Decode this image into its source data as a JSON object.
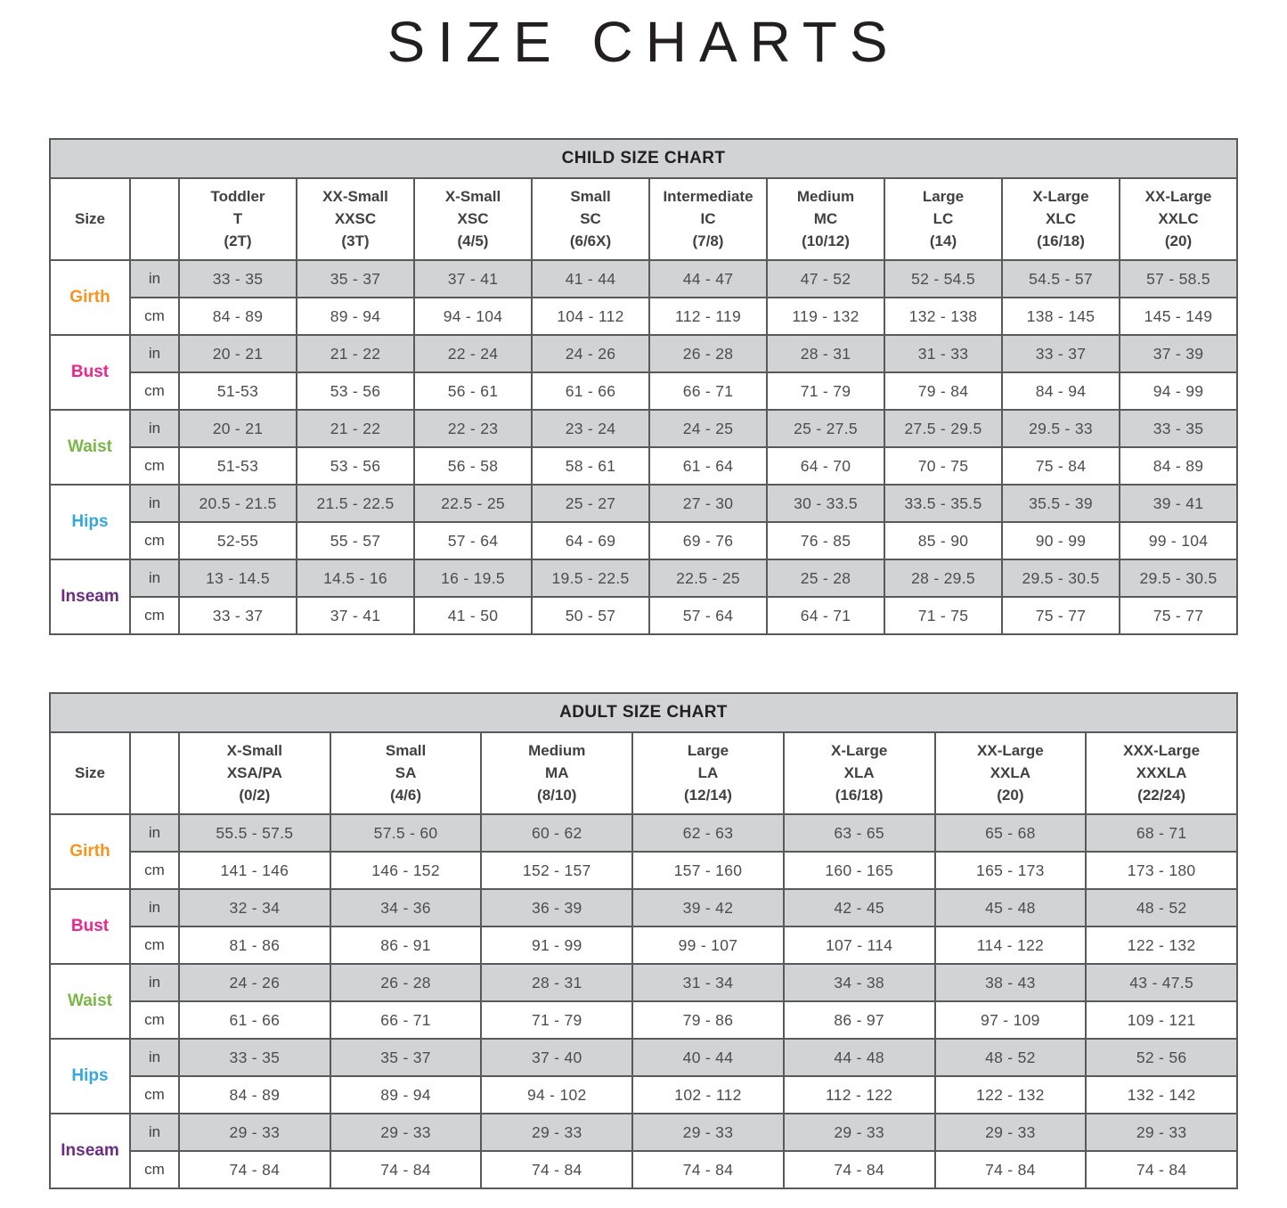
{
  "page": {
    "title": "SIZE CHARTS"
  },
  "colors": {
    "band_background": "#D1D3D4",
    "row_in_background": "#D1D3D4",
    "row_cm_background": "#FFFFFF",
    "border": "#58595B",
    "title_text": "#231F20",
    "value_text": "#4D4D4F",
    "girth_accent": "#F7941E",
    "bust_accent": "#EC268F",
    "waist_accent": "#7AB648",
    "hips_accent": "#35A8E0",
    "inseam_accent": "#6B2D82"
  },
  "charts": [
    {
      "id": "child",
      "title": "CHILD SIZE CHART",
      "corner_label": "Size",
      "unit_labels": [
        "in",
        "cm"
      ],
      "columns": [
        {
          "name": "Toddler",
          "code": "T",
          "range": "(2T)"
        },
        {
          "name": "XX-Small",
          "code": "XXSC",
          "range": "(3T)"
        },
        {
          "name": "X-Small",
          "code": "XSC",
          "range": "(4/5)"
        },
        {
          "name": "Small",
          "code": "SC",
          "range": "(6/6X)"
        },
        {
          "name": "Intermediate",
          "code": "IC",
          "range": "(7/8)"
        },
        {
          "name": "Medium",
          "code": "MC",
          "range": "(10/12)"
        },
        {
          "name": "Large",
          "code": "LC",
          "range": "(14)"
        },
        {
          "name": "X-Large",
          "code": "XLC",
          "range": "(16/18)"
        },
        {
          "name": "XX-Large",
          "code": "XXLC",
          "range": "(20)"
        }
      ],
      "measurements": [
        {
          "label": "Girth",
          "color": "#F7941E",
          "values_in": [
            "33 - 35",
            "35 - 37",
            "37 - 41",
            "41 - 44",
            "44 - 47",
            "47 - 52",
            "52 - 54.5",
            "54.5 - 57",
            "57 - 58.5"
          ],
          "values_cm": [
            "84 - 89",
            "89 - 94",
            "94 - 104",
            "104 - 112",
            "112 - 119",
            "119 - 132",
            "132 - 138",
            "138 - 145",
            "145 - 149"
          ]
        },
        {
          "label": "Bust",
          "color": "#EC268F",
          "values_in": [
            "20 - 21",
            "21 - 22",
            "22 - 24",
            "24 - 26",
            "26 - 28",
            "28 - 31",
            "31 - 33",
            "33 - 37",
            "37 - 39"
          ],
          "values_cm": [
            "51-53",
            "53 - 56",
            "56 - 61",
            "61 - 66",
            "66 - 71",
            "71 - 79",
            "79 - 84",
            "84 - 94",
            "94 - 99"
          ]
        },
        {
          "label": "Waist",
          "color": "#7AB648",
          "values_in": [
            "20 - 21",
            "21 - 22",
            "22 - 23",
            "23 - 24",
            "24 - 25",
            "25 - 27.5",
            "27.5 - 29.5",
            "29.5 - 33",
            "33 - 35"
          ],
          "values_cm": [
            "51-53",
            "53 - 56",
            "56 - 58",
            "58 - 61",
            "61 - 64",
            "64 - 70",
            "70 - 75",
            "75 - 84",
            "84 - 89"
          ]
        },
        {
          "label": "Hips",
          "color": "#35A8E0",
          "values_in": [
            "20.5 - 21.5",
            "21.5 - 22.5",
            "22.5 - 25",
            "25 - 27",
            "27 - 30",
            "30 - 33.5",
            "33.5 - 35.5",
            "35.5 - 39",
            "39 - 41"
          ],
          "values_cm": [
            "52-55",
            "55 - 57",
            "57 - 64",
            "64 - 69",
            "69 - 76",
            "76 - 85",
            "85 - 90",
            "90 - 99",
            "99 - 104"
          ]
        },
        {
          "label": "Inseam",
          "color": "#6B2D82",
          "values_in": [
            "13 - 14.5",
            "14.5 - 16",
            "16 - 19.5",
            "19.5 - 22.5",
            "22.5 - 25",
            "25 - 28",
            "28 - 29.5",
            "29.5 - 30.5",
            "29.5 - 30.5"
          ],
          "values_cm": [
            "33 - 37",
            "37 - 41",
            "41 - 50",
            "50 - 57",
            "57 - 64",
            "64 - 71",
            "71 - 75",
            "75 - 77",
            "75 - 77"
          ]
        }
      ]
    },
    {
      "id": "adult",
      "title": "ADULT SIZE CHART",
      "corner_label": "Size",
      "unit_labels": [
        "in",
        "cm"
      ],
      "columns": [
        {
          "name": "X-Small",
          "code": "XSA/PA",
          "range": "(0/2)"
        },
        {
          "name": "Small",
          "code": "SA",
          "range": "(4/6)"
        },
        {
          "name": "Medium",
          "code": "MA",
          "range": "(8/10)"
        },
        {
          "name": "Large",
          "code": "LA",
          "range": "(12/14)"
        },
        {
          "name": "X-Large",
          "code": "XLA",
          "range": "(16/18)"
        },
        {
          "name": "XX-Large",
          "code": "XXLA",
          "range": "(20)"
        },
        {
          "name": "XXX-Large",
          "code": "XXXLA",
          "range": "(22/24)"
        }
      ],
      "measurements": [
        {
          "label": "Girth",
          "color": "#F7941E",
          "values_in": [
            "55.5 - 57.5",
            "57.5 - 60",
            "60 - 62",
            "62 - 63",
            "63 - 65",
            "65 - 68",
            "68 - 71"
          ],
          "values_cm": [
            "141 - 146",
            "146 - 152",
            "152 - 157",
            "157 - 160",
            "160 - 165",
            "165 - 173",
            "173 - 180"
          ]
        },
        {
          "label": "Bust",
          "color": "#EC268F",
          "values_in": [
            "32 - 34",
            "34 - 36",
            "36 - 39",
            "39 - 42",
            "42 - 45",
            "45 - 48",
            "48 - 52"
          ],
          "values_cm": [
            "81 - 86",
            "86 - 91",
            "91 - 99",
            "99 - 107",
            "107 - 114",
            "114 - 122",
            "122 - 132"
          ]
        },
        {
          "label": "Waist",
          "color": "#7AB648",
          "values_in": [
            "24 - 26",
            "26 - 28",
            "28 - 31",
            "31 - 34",
            "34 - 38",
            "38 - 43",
            "43 - 47.5"
          ],
          "values_cm": [
            "61 - 66",
            "66 - 71",
            "71 - 79",
            "79 - 86",
            "86 - 97",
            "97 - 109",
            "109 - 121"
          ]
        },
        {
          "label": "Hips",
          "color": "#35A8E0",
          "values_in": [
            "33 - 35",
            "35 - 37",
            "37 - 40",
            "40 - 44",
            "44 - 48",
            "48 - 52",
            "52 - 56"
          ],
          "values_cm": [
            "84 - 89",
            "89 - 94",
            "94 - 102",
            "102 - 112",
            "112 - 122",
            "122 - 132",
            "132 - 142"
          ]
        },
        {
          "label": "Inseam",
          "color": "#6B2D82",
          "values_in": [
            "29 - 33",
            "29 - 33",
            "29 - 33",
            "29 - 33",
            "29 - 33",
            "29 - 33",
            "29 - 33"
          ],
          "values_cm": [
            "74 - 84",
            "74 - 84",
            "74 - 84",
            "74 - 84",
            "74 - 84",
            "74 - 84",
            "74 - 84"
          ]
        }
      ]
    }
  ]
}
